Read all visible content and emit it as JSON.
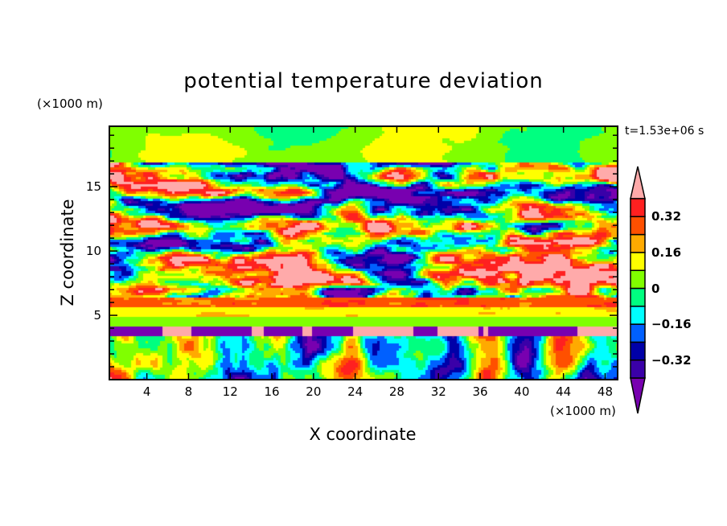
{
  "chart_data": {
    "type": "heatmap",
    "title": "potential temperature deviation",
    "xlabel": "X coordinate",
    "ylabel": "Z coordinate",
    "x_unit": "(×1000 m)",
    "y_unit": "(×1000 m)",
    "time_label": "t=1.53e+06 s",
    "xlim": [
      0.4,
      49.2
    ],
    "ylim": [
      0,
      19.7
    ],
    "xticks": [
      4,
      8,
      12,
      16,
      20,
      24,
      28,
      32,
      36,
      40,
      44,
      48
    ],
    "xtick_labels": [
      "4",
      "8",
      "12",
      "16",
      "20",
      "24",
      "28",
      "32",
      "36",
      "40",
      "44",
      "48"
    ],
    "yticks": [
      5,
      10,
      15
    ],
    "ytick_labels": [
      "5",
      "10",
      "15"
    ],
    "colorbar": {
      "levels": [
        -0.4,
        -0.32,
        -0.24,
        -0.16,
        -0.08,
        0,
        0.08,
        0.16,
        0.24,
        0.32,
        0.4
      ],
      "labels": [
        {
          "value": 0.32,
          "text": "0.32"
        },
        {
          "value": 0.16,
          "text": "0.16"
        },
        {
          "value": 0,
          "text": "0"
        },
        {
          "value": -0.16,
          "text": "−0.16"
        },
        {
          "value": -0.32,
          "text": "−0.32"
        }
      ],
      "colors": [
        "#3a00a8",
        "#0000a8",
        "#0060ff",
        "#00ffff",
        "#00ff80",
        "#80ff00",
        "#ffff00",
        "#ffaa00",
        "#ff5000",
        "#ff2020"
      ],
      "under_color": "#7800b0",
      "over_color": "#ffaaaa",
      "extend": "both"
    },
    "field_description_layers": [
      {
        "z_range": [
          17,
          19.7
        ],
        "dominant_values": [
          0,
          0.08
        ]
      },
      {
        "z_range": [
          6.5,
          17
        ],
        "dominant_values": [
          -0.4,
          0.4
        ]
      },
      {
        "z_range": [
          5,
          6.5
        ],
        "dominant_values": [
          0.16,
          0.32
        ]
      },
      {
        "z_range": [
          4.3,
          5
        ],
        "dominant_values": [
          0,
          0.08
        ]
      },
      {
        "z_range": [
          3.5,
          4.3
        ],
        "dominant_values": [
          -0.4,
          0.4
        ]
      },
      {
        "z_range": [
          0,
          3.5
        ],
        "dominant_values": [
          -0.3,
          0.3
        ]
      }
    ]
  }
}
